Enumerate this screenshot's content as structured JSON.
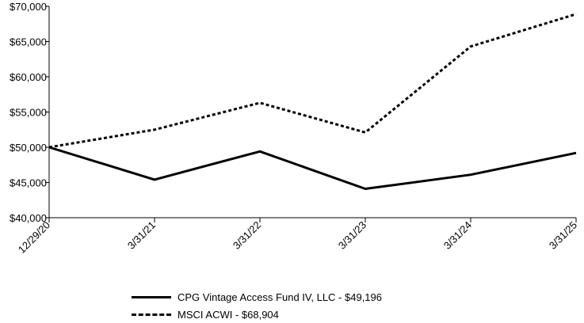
{
  "chart_data": {
    "type": "line",
    "x": [
      "12/29/20",
      "3/31/21",
      "3/31/22",
      "3/31/23",
      "3/31/24",
      "3/31/25"
    ],
    "y_ticks": [
      "$40,000",
      "$45,000",
      "$50,000",
      "$55,000",
      "$60,000",
      "$65,000",
      "$70,000"
    ],
    "ylim": [
      40000,
      70000
    ],
    "grid": false,
    "legend_position": "bottom",
    "series": [
      {
        "name": "CPG Vintage Access Fund IV, LLC - $49,196",
        "style": "solid",
        "color": "#000000",
        "values": [
          50000,
          45400,
          49400,
          44100,
          46100,
          49196
        ]
      },
      {
        "name": "MSCI ACWI - $68,904",
        "style": "dashed",
        "color": "#000000",
        "values": [
          50000,
          52500,
          56300,
          52100,
          64300,
          68904
        ]
      }
    ]
  }
}
